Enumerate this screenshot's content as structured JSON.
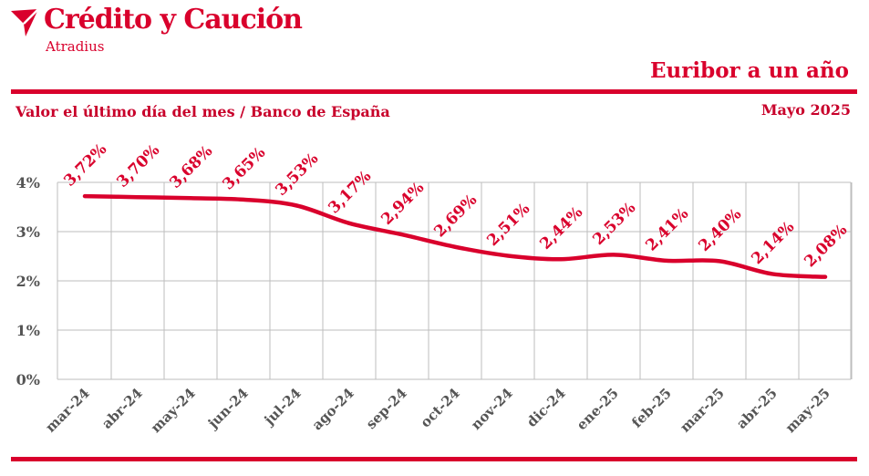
{
  "header": {
    "brand_name": "Crédito y Caución",
    "brand_sub": "Atradius",
    "title": "Euribor a un año",
    "subtitle": "Valor el último día del mes / Banco de España",
    "date": "Mayo 2025"
  },
  "colors": {
    "accent": "#d9002c",
    "grid": "#bdbdbd",
    "axis_text": "#555555"
  },
  "chart_data": {
    "type": "line",
    "categories": [
      "mar-24",
      "abr-24",
      "may-24",
      "jun-24",
      "jul-24",
      "ago-24",
      "sep-24",
      "oct-24",
      "nov-24",
      "dic-24",
      "ene-25",
      "feb-25",
      "mar-25",
      "abr-25",
      "may-25"
    ],
    "values": [
      3.72,
      3.7,
      3.68,
      3.65,
      3.53,
      3.17,
      2.94,
      2.69,
      2.51,
      2.44,
      2.53,
      2.41,
      2.4,
      2.14,
      2.08
    ],
    "data_labels": [
      "3,72%",
      "3,70%",
      "3,68%",
      "3,65%",
      "3,53%",
      "3,17%",
      "2,94%",
      "2,69%",
      "2,51%",
      "2,44%",
      "2,53%",
      "2,41%",
      "2,40%",
      "2,14%",
      "2,08%"
    ],
    "y_ticks": [
      0,
      1,
      2,
      3,
      4
    ],
    "y_tick_labels": [
      "0%",
      "1%",
      "2%",
      "3%",
      "4%"
    ],
    "ylim": [
      0,
      4
    ],
    "grid": true,
    "legend": "none"
  }
}
